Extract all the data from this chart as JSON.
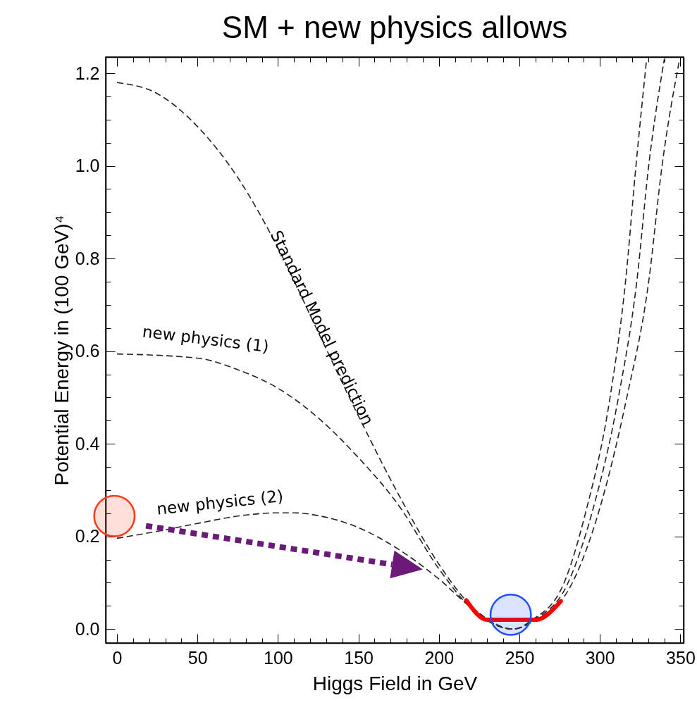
{
  "chart_data": {
    "type": "line",
    "title": "SM + new physics allows",
    "xlabel": "Higgs Field in GeV",
    "ylabel": "Potential Energy in (100 GeV)⁴",
    "xlim": [
      -7,
      352
    ],
    "ylim": [
      -0.03,
      1.235
    ],
    "xticks": [
      0,
      {
        "value": 10,
        "label": null
      },
      {
        "value": 20,
        "label": null
      },
      {
        "value": 30,
        "label": null
      },
      {
        "value": 40,
        "label": null
      },
      50,
      {
        "value": 60,
        "label": null
      },
      {
        "value": 70,
        "label": null
      },
      {
        "value": 80,
        "label": null
      },
      {
        "value": 90,
        "label": null
      },
      100,
      {
        "value": 110,
        "label": null
      },
      {
        "value": 120,
        "label": null
      },
      {
        "value": 130,
        "label": null
      },
      {
        "value": 140,
        "label": null
      },
      150,
      {
        "value": 160,
        "label": null
      },
      {
        "value": 170,
        "label": null
      },
      {
        "value": 180,
        "label": null
      },
      {
        "value": 190,
        "label": null
      },
      200,
      {
        "value": 210,
        "label": null
      },
      {
        "value": 220,
        "label": null
      },
      {
        "value": 230,
        "label": null
      },
      {
        "value": 240,
        "label": null
      },
      250,
      {
        "value": 260,
        "label": null
      },
      {
        "value": 270,
        "label": null
      },
      {
        "value": 280,
        "label": null
      },
      {
        "value": 290,
        "label": null
      },
      300,
      {
        "value": 310,
        "label": null
      },
      {
        "value": 320,
        "label": null
      },
      {
        "value": 330,
        "label": null
      },
      {
        "value": 340,
        "label": null
      },
      350
    ],
    "yticks": [
      {
        "value": 0,
        "label": "0.0"
      },
      {
        "value": 0.05,
        "label": null
      },
      {
        "value": 0.1,
        "label": null
      },
      {
        "value": 0.15,
        "label": null
      },
      {
        "value": 0.2,
        "label": "0.2"
      },
      {
        "value": 0.25,
        "label": null
      },
      {
        "value": 0.3,
        "label": null
      },
      {
        "value": 0.35,
        "label": null
      },
      {
        "value": 0.4,
        "label": "0.4"
      },
      {
        "value": 0.45,
        "label": null
      },
      {
        "value": 0.5,
        "label": null
      },
      {
        "value": 0.55,
        "label": null
      },
      {
        "value": 0.6,
        "label": "0.6"
      },
      {
        "value": 0.65,
        "label": null
      },
      {
        "value": 0.7,
        "label": null
      },
      {
        "value": 0.75,
        "label": null
      },
      {
        "value": 0.8,
        "label": "0.8"
      },
      {
        "value": 0.85,
        "label": null
      },
      {
        "value": 0.9,
        "label": null
      },
      {
        "value": 0.95,
        "label": null
      },
      {
        "value": 1.0,
        "label": "1.0"
      },
      {
        "value": 1.05,
        "label": null
      },
      {
        "value": 1.1,
        "label": null
      },
      {
        "value": 1.15,
        "label": null
      },
      {
        "value": 1.2,
        "label": "1.2"
      }
    ],
    "grid": false,
    "marker": "none",
    "series": [
      {
        "name": "Standard Model prediction",
        "color": "#222222",
        "line_style": "dashed",
        "x": [
          0,
          25,
          50,
          75,
          100,
          125,
          150,
          175,
          200,
          220,
          246,
          260,
          282,
          299,
          316.7,
          330.3,
          338.6,
          349.5
        ],
        "values": [
          1.18,
          1.156,
          1.085,
          0.975,
          0.823,
          0.641,
          0.46,
          0.29,
          0.14,
          0.05,
          0,
          0.02,
          0.094,
          0.25,
          0.5,
          0.75,
          1.0,
          1.23
        ]
      },
      {
        "name": "new physics (1)",
        "color": "#222222",
        "line_style": "dashed",
        "x": [
          0,
          50,
          75,
          100,
          125,
          150,
          175,
          200,
          220,
          246,
          259,
          279.4,
          295,
          311.5,
          322.9,
          330.3,
          340
        ],
        "values": [
          0.594,
          0.585,
          0.56,
          0.52,
          0.456,
          0.37,
          0.267,
          0.13,
          0.045,
          0,
          0.02,
          0.094,
          0.25,
          0.5,
          0.75,
          1.0,
          1.23
        ]
      },
      {
        "name": "new physics (2)",
        "color": "#222222",
        "line_style": "dashed",
        "x": [
          0,
          25,
          50,
          75,
          100,
          110,
          125,
          150,
          175,
          200,
          220,
          246,
          258,
          277,
          291,
          306.3,
          315.9,
          322.4,
          329
        ],
        "values": [
          0.196,
          0.211,
          0.228,
          0.244,
          0.251,
          0.251,
          0.245,
          0.219,
          0.172,
          0.108,
          0.047,
          0,
          0.02,
          0.094,
          0.25,
          0.5,
          0.75,
          1.0,
          1.23
        ]
      },
      {
        "color": "#ff0000",
        "line_style": "solid",
        "x": [
          217,
          230,
          260,
          275.7
        ],
        "values": [
          0.062,
          0.02,
          0.02,
          0.06
        ]
      },
      {
        "type": "scatter",
        "marker": "circle",
        "color": "#ff3a1a",
        "x": [
          -1.6
        ],
        "values": [
          0.244
        ]
      },
      {
        "type": "scatter",
        "marker": "circle",
        "color": "#1f4fff",
        "x": [
          244.6
        ],
        "values": [
          0.031
        ]
      }
    ]
  }
}
